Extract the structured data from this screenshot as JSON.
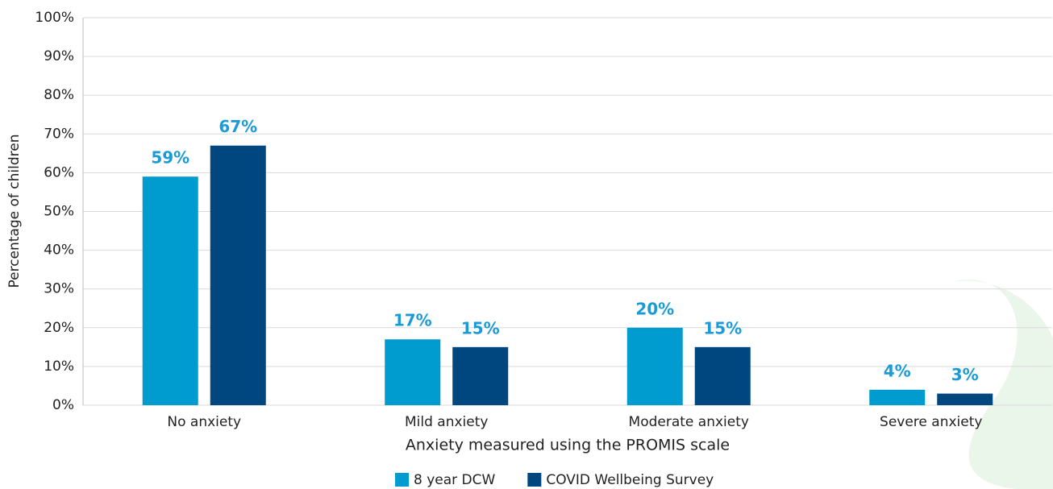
{
  "chart_data": {
    "type": "bar",
    "x_label": "Anxiety measured using the PROMIS scale",
    "y_label": "Percentage of children",
    "categories": [
      "No anxiety",
      "Mild anxiety",
      "Moderate anxiety",
      "Severe anxiety"
    ],
    "series": [
      {
        "name": "8 year DCW",
        "color": "#009cd0",
        "values": [
          59,
          17,
          20,
          4
        ],
        "value_labels": [
          "59%",
          "17%",
          "20%",
          "4%"
        ]
      },
      {
        "name": "COVID Wellbeing Survey",
        "color": "#00467f",
        "values": [
          67,
          15,
          15,
          3
        ],
        "value_labels": [
          "67%",
          "15%",
          "15%",
          "3%"
        ]
      }
    ],
    "ylim": [
      0,
      100
    ],
    "yticks": [
      {
        "value": 0,
        "label": "0%"
      },
      {
        "value": 10,
        "label": "10%"
      },
      {
        "value": 20,
        "label": "20%"
      },
      {
        "value": 30,
        "label": "30%"
      },
      {
        "value": 40,
        "label": "40%"
      },
      {
        "value": 50,
        "label": "50%"
      },
      {
        "value": 60,
        "label": "60%"
      },
      {
        "value": 70,
        "label": "70%"
      },
      {
        "value": 80,
        "label": "80%"
      },
      {
        "value": 90,
        "label": "90%"
      },
      {
        "value": 100,
        "label": "100%"
      }
    ],
    "grid": true,
    "legend": "bottom"
  }
}
